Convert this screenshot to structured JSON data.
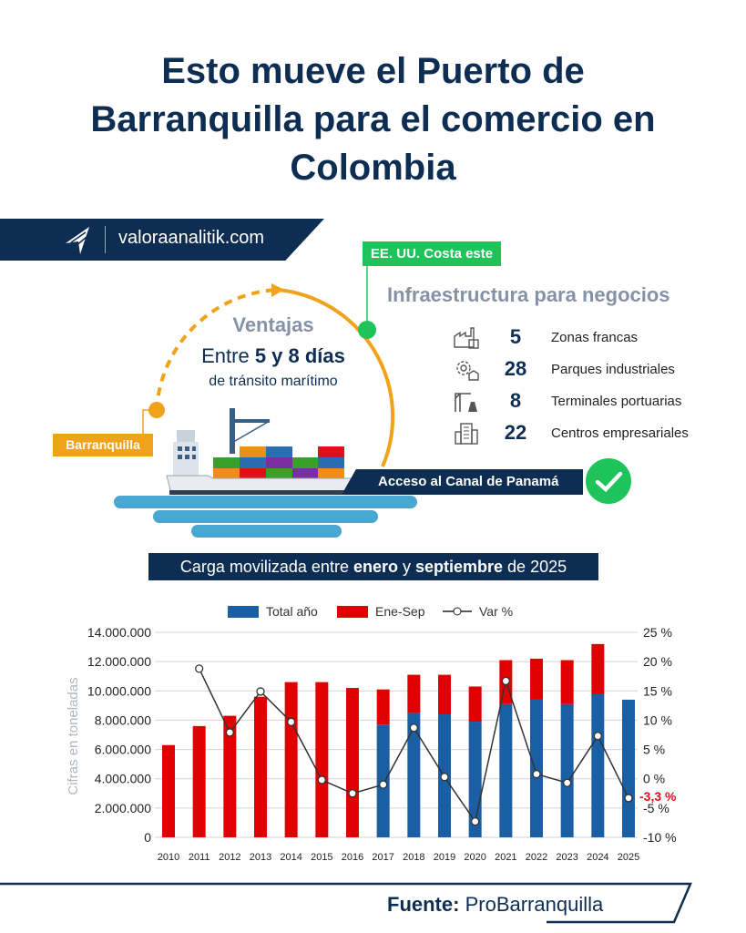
{
  "title_lines": [
    "Esto mueve el Puerto de",
    "Barranquilla para el comercio en",
    "Colombia"
  ],
  "banner": {
    "site": "valoraanalitik.com",
    "logo_icon": "valora-analitik-logo"
  },
  "route": {
    "origin": "Barranquilla",
    "destination": "EE. UU. Costa este",
    "heading": "Ventajas",
    "days_prefix": "Entre",
    "days_bold": "5 y 8 días",
    "days_sub": "de tránsito marítimo",
    "canal": "Acceso al Canal de Panamá",
    "canal_icon": "check-icon"
  },
  "infra": {
    "title": "Infraestructura para negocios",
    "items": [
      {
        "value": "5",
        "label": "Zonas francas",
        "icon": "factory-icon"
      },
      {
        "value": "28",
        "label": "Parques industriales",
        "icon": "gear-factory-icon"
      },
      {
        "value": "8",
        "label": "Terminales portuarias",
        "icon": "port-crane-icon"
      },
      {
        "value": "22",
        "label": "Centros empresariales",
        "icon": "office-building-icon"
      }
    ]
  },
  "chart_header": {
    "pre": "Carga movilizada entre ",
    "b1": "enero",
    "mid": " y ",
    "b2": "septiembre",
    "post": " de 2025"
  },
  "colors": {
    "navy": "#0d2e52",
    "blue": "#1a5fa3",
    "red": "#e00000",
    "orange": "#f0a21b",
    "green": "#1ec45a"
  },
  "chart_data": {
    "type": "bar+line",
    "categories": [
      "2010",
      "2011",
      "2012",
      "2013",
      "2014",
      "2015",
      "2016",
      "2017",
      "2018",
      "2019",
      "2020",
      "2021",
      "2022",
      "2023",
      "2024",
      "2025"
    ],
    "series": [
      {
        "name": "Total año",
        "type": "stacked-bar",
        "color": "#1a5fa3",
        "values": [
          0,
          0,
          0,
          0,
          0,
          0,
          0,
          7700000,
          8500000,
          8400000,
          7900000,
          9100000,
          9400000,
          9100000,
          9800000,
          9400000
        ]
      },
      {
        "name": "Ene-Sep",
        "type": "stacked-bar",
        "color": "#e00000",
        "values": [
          6300000,
          7600000,
          8300000,
          9600000,
          10600000,
          10600000,
          10200000,
          2400000,
          2600000,
          2700000,
          2400000,
          3000000,
          2800000,
          3000000,
          3400000,
          0
        ]
      },
      {
        "name": "Var %",
        "type": "line",
        "axis": "right",
        "values": [
          null,
          18.8,
          7.9,
          14.9,
          9.7,
          -0.2,
          -2.5,
          -1.0,
          8.7,
          0.3,
          -7.3,
          16.7,
          0.8,
          -0.7,
          7.3,
          -3.3
        ]
      }
    ],
    "ylabel": "Cifras en toneladas",
    "ylim": [
      0,
      14000000
    ],
    "yticks": [
      "0",
      "2.000.000",
      "4.000.000",
      "6.000.000",
      "8.000.000",
      "10.000.000",
      "12.000.000",
      "14.000.000"
    ],
    "y2lim": [
      -10,
      25
    ],
    "y2ticks": [
      "-10 %",
      "-5 %",
      "0 %",
      "5 %",
      "10 %",
      "15 %",
      "20 %",
      "25 %"
    ],
    "annotation": "-3,3 %",
    "grid": true,
    "legend": "top"
  },
  "source": {
    "label": "Fuente:",
    "value": "ProBarranquilla"
  }
}
